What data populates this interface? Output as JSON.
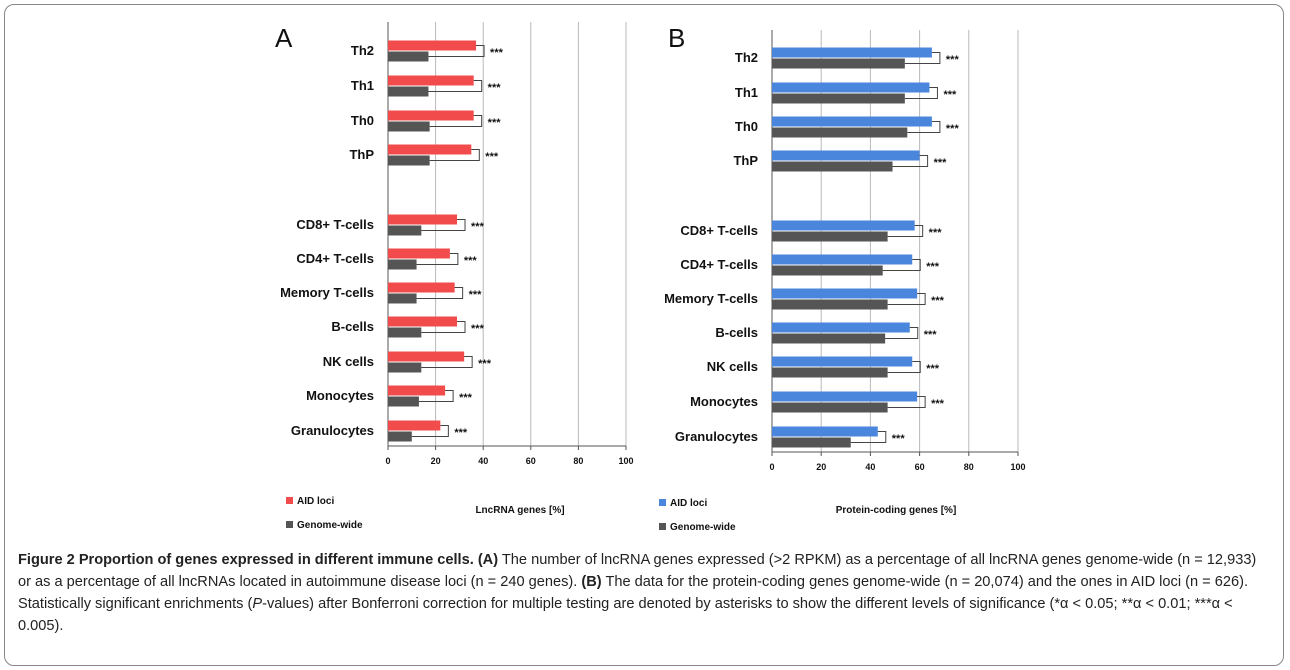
{
  "chart_data": [
    {
      "type": "bar",
      "panel": "A",
      "orientation": "horizontal",
      "categories": [
        "Th2",
        "Th1",
        "Th0",
        "ThP",
        "CD8+ T-cells",
        "CD4+ T-cells",
        "Memory T-cells",
        "B-cells",
        "NK cells",
        "Monocytes",
        "Granulocytes"
      ],
      "series": [
        {
          "name": "AID loci",
          "color": "#f24b4b",
          "values": [
            37,
            36,
            36,
            35,
            29,
            26,
            28,
            29,
            32,
            24,
            22
          ]
        },
        {
          "name": "Genome-wide",
          "color": "#555555",
          "values": [
            17,
            17,
            17.5,
            17.5,
            14,
            12,
            12,
            14,
            14,
            13,
            10
          ]
        }
      ],
      "significance": [
        "***",
        "***",
        "***",
        "***",
        "***",
        "***",
        "***",
        "***",
        "***",
        "***",
        "***"
      ],
      "xlabel": "LncRNA genes [%]",
      "xlim": [
        0,
        100
      ],
      "xticks": [
        "0",
        "20",
        "40",
        "60",
        "80",
        "100"
      ],
      "grid": true,
      "legend_position": "bottom-left"
    },
    {
      "type": "bar",
      "panel": "B",
      "orientation": "horizontal",
      "categories": [
        "Th2",
        "Th1",
        "Th0",
        "ThP",
        "CD8+ T-cells",
        "CD4+ T-cells",
        "Memory T-cells",
        "B-cells",
        "NK cells",
        "Monocytes",
        "Granulocytes"
      ],
      "series": [
        {
          "name": "AID loci",
          "color": "#4a86dc",
          "values": [
            65,
            64,
            65,
            60,
            58,
            57,
            59,
            56,
            57,
            59,
            43
          ]
        },
        {
          "name": "Genome-wide",
          "color": "#555555",
          "values": [
            54,
            54,
            55,
            49,
            47,
            45,
            47,
            46,
            47,
            47,
            32
          ]
        }
      ],
      "significance": [
        "***",
        "***",
        "***",
        "***",
        "***",
        "***",
        "***",
        "***",
        "***",
        "***",
        "***"
      ],
      "xlabel": "Protein-coding genes [%]",
      "xlim": [
        0,
        100
      ],
      "xticks": [
        "0",
        "20",
        "40",
        "60",
        "80",
        "100"
      ],
      "grid": true,
      "legend_position": "bottom-left"
    }
  ],
  "caption": {
    "title": "Figure 2 Proportion of genes expressed in different immune cells.",
    "a_label": "(A)",
    "a_text": "The number of lncRNA genes expressed (>2 RPKM) as a percentage of all lncRNA genes genome-wide (n = 12,933) or as a percentage of all lncRNAs located in autoimmune disease loci (n = 240 genes).",
    "b_label": "(B)",
    "b_text_1": "The data for the protein-coding genes genome-wide (n = 20,074) and the ones in AID loci (n = 626). Statistically significant enrichments (",
    "b_text_ital": "P",
    "b_text_2": "-values) after Bonferroni correction for multiple testing are denoted by asterisks to show the different levels of significance (*α < 0.05; **α < 0.01; ***α < 0.005)."
  }
}
